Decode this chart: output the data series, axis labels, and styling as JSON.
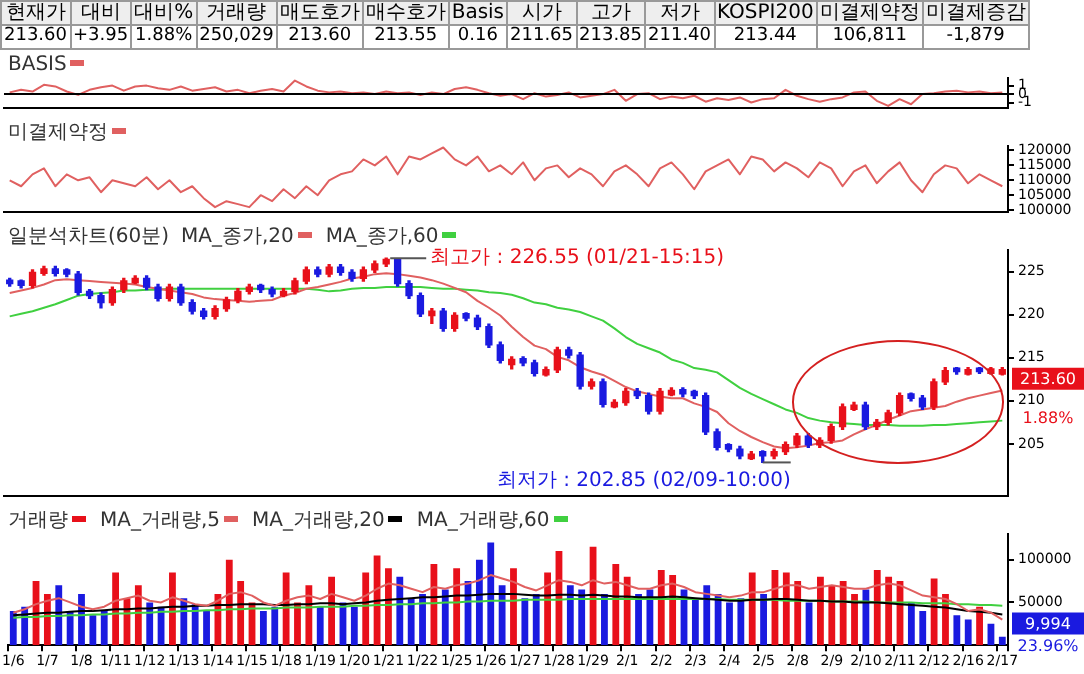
{
  "chart_data": [
    {
      "type": "other",
      "categories": [
        "현재가",
        "대비",
        "대비%",
        "거래량",
        "매도호가",
        "매수호가",
        "Basis",
        "시가",
        "고가",
        "저가",
        "KOSPI200",
        "미결제약정",
        "미결제증감"
      ],
      "value_labels": [
        "213.60",
        "+3.95",
        "1.88%",
        "250,029",
        "213.60",
        "213.55",
        "0.16",
        "211.65",
        "213.85",
        "211.40",
        "213.44",
        "106,811",
        "-1,879"
      ]
    },
    {
      "type": "line",
      "categories": [
        null,
        null,
        null,
        null,
        null,
        null,
        null,
        null,
        null,
        null,
        null,
        null,
        null,
        null,
        null,
        null,
        null,
        null,
        null,
        null,
        null,
        null,
        null,
        null,
        null,
        null,
        null,
        null,
        null,
        null,
        null,
        null,
        null,
        null,
        null,
        null,
        null,
        null,
        null,
        null,
        null,
        null,
        null,
        null,
        null,
        null,
        null,
        null,
        null,
        null,
        null,
        null,
        null,
        null,
        null,
        null,
        null,
        null,
        null,
        null,
        null,
        null,
        null,
        null,
        null,
        null,
        null,
        null,
        null,
        null,
        null,
        null,
        null,
        null,
        null,
        null,
        null,
        null,
        null,
        null,
        null,
        null,
        null,
        null,
        null,
        null,
        null,
        null
      ],
      "series": [
        {
          "name": "BASIS",
          "color": "#e06060",
          "values": [
            0.2,
            0.5,
            0.3,
            1.1,
            0.9,
            0.3,
            -0.1,
            0.5,
            0.8,
            1.0,
            0.4,
            0.9,
            1.0,
            0.7,
            0.5,
            0.9,
            0.4,
            0.6,
            0.8,
            0.3,
            0.5,
            0.1,
            0.4,
            0.6,
            0.3,
            1.6,
            0.9,
            0.4,
            0.2,
            0.3,
            0.1,
            0.2,
            0.0,
            0.3,
            0.1,
            0.2,
            -0.1,
            0.2,
            0.0,
            0.6,
            0.8,
            0.5,
            0.1,
            -0.2,
            0.0,
            -0.6,
            0.1,
            -0.3,
            -0.1,
            0.2,
            -0.4,
            -0.2,
            0.0,
            0.5,
            -0.8,
            0.0,
            0.1,
            -0.6,
            -0.3,
            -0.5,
            -0.2,
            -0.9,
            -0.5,
            -0.7,
            -0.4,
            -1.0,
            -0.6,
            -0.5,
            0.5,
            -0.2,
            -0.6,
            -0.9,
            -0.6,
            -0.4,
            0.2,
            0.3,
            -0.8,
            -1.4,
            -0.6,
            -1.2,
            0.0,
            0.1,
            0.3,
            0.4,
            0.2,
            0.3,
            0.1,
            0.2
          ]
        }
      ],
      "ylim": [
        -1.6,
        1.9
      ],
      "yticks": [
        -1,
        0,
        1
      ],
      "ref_lines": [
        {
          "axis": "y",
          "value": 0,
          "color": "#000000"
        }
      ],
      "tick_labels": "y",
      "legend": "top left"
    },
    {
      "type": "line",
      "categories": [
        null,
        null,
        null,
        null,
        null,
        null,
        null,
        null,
        null,
        null,
        null,
        null,
        null,
        null,
        null,
        null,
        null,
        null,
        null,
        null,
        null,
        null,
        null,
        null,
        null,
        null,
        null,
        null,
        null,
        null,
        null,
        null,
        null,
        null,
        null,
        null,
        null,
        null,
        null,
        null,
        null,
        null,
        null,
        null,
        null,
        null,
        null,
        null,
        null,
        null,
        null,
        null,
        null,
        null,
        null,
        null,
        null,
        null,
        null,
        null,
        null,
        null,
        null,
        null,
        null,
        null,
        null,
        null,
        null,
        null,
        null,
        null,
        null,
        null,
        null,
        null,
        null,
        null,
        null,
        null,
        null,
        null,
        null,
        null,
        null,
        null,
        null,
        null
      ],
      "series": [
        {
          "name": "미결제약정",
          "color": "#e06060",
          "values": [
            110000,
            108000,
            112000,
            114000,
            108000,
            112000,
            110000,
            111000,
            106000,
            110000,
            109000,
            108000,
            111000,
            107000,
            110000,
            106000,
            108000,
            104000,
            101000,
            103000,
            102000,
            101000,
            105000,
            103000,
            107000,
            104000,
            108000,
            105000,
            110000,
            112000,
            113000,
            117000,
            115000,
            118000,
            112000,
            118000,
            117000,
            119000,
            121000,
            117000,
            115000,
            118000,
            113000,
            115000,
            112000,
            116000,
            110000,
            114000,
            115000,
            111000,
            114000,
            112000,
            108000,
            113000,
            115000,
            112000,
            108000,
            114000,
            116000,
            112000,
            107000,
            113000,
            115000,
            117000,
            112000,
            118000,
            117000,
            113000,
            116000,
            114000,
            111000,
            116000,
            114000,
            108000,
            113000,
            115000,
            109000,
            113000,
            116000,
            110000,
            106000,
            112000,
            115000,
            114000,
            109000,
            112000,
            110000,
            108000
          ]
        }
      ],
      "ylim": [
        99500,
        121500
      ],
      "yticks": [
        100000,
        105000,
        110000,
        115000,
        120000
      ],
      "tick_labels": "y",
      "legend": "top left"
    },
    {
      "type": "candlestick",
      "title": "일분석차트(60분)",
      "categories": [
        null,
        null,
        null,
        null,
        null,
        null,
        null,
        null,
        null,
        null,
        null,
        null,
        null,
        null,
        null,
        null,
        null,
        null,
        null,
        null,
        null,
        null,
        null,
        null,
        null,
        null,
        null,
        null,
        null,
        null,
        null,
        null,
        null,
        null,
        null,
        null,
        null,
        null,
        null,
        null,
        null,
        null,
        null,
        null,
        null,
        null,
        null,
        null,
        null,
        null,
        null,
        null,
        null,
        null,
        null,
        null,
        null,
        null,
        null,
        null,
        null,
        null,
        null,
        null,
        null,
        null,
        null,
        null,
        null,
        null,
        null,
        null,
        null,
        null,
        null,
        null,
        null,
        null,
        null,
        null,
        null,
        null,
        null,
        null,
        null,
        null,
        null,
        null
      ],
      "ohlc": [
        [
          224.0,
          224.2,
          223.3,
          223.6
        ],
        [
          223.9,
          224.0,
          223.1,
          223.4
        ],
        [
          223.4,
          225.2,
          223.1,
          224.9
        ],
        [
          224.8,
          225.6,
          224.6,
          225.3
        ],
        [
          225.3,
          225.6,
          224.5,
          224.8
        ],
        [
          225.2,
          225.3,
          224.4,
          224.7
        ],
        [
          224.7,
          225.0,
          222.3,
          222.6
        ],
        [
          222.7,
          222.9,
          221.9,
          222.2
        ],
        [
          222.2,
          222.5,
          220.8,
          221.4
        ],
        [
          221.4,
          223.2,
          221.1,
          222.9
        ],
        [
          222.9,
          224.2,
          222.6,
          223.9
        ],
        [
          223.7,
          224.5,
          223.6,
          224.2
        ],
        [
          224.2,
          224.5,
          222.9,
          223.2
        ],
        [
          223.2,
          223.5,
          221.6,
          221.9
        ],
        [
          221.9,
          223.5,
          221.6,
          223.2
        ],
        [
          223.2,
          223.5,
          221.1,
          221.4
        ],
        [
          221.4,
          221.7,
          220.1,
          220.4
        ],
        [
          220.4,
          220.7,
          219.5,
          219.8
        ],
        [
          219.8,
          221.0,
          219.5,
          220.7
        ],
        [
          220.7,
          222.0,
          220.4,
          221.7
        ],
        [
          221.7,
          223.0,
          221.4,
          222.7
        ],
        [
          222.7,
          223.5,
          222.4,
          223.2
        ],
        [
          223.4,
          223.5,
          222.6,
          222.9
        ],
        [
          222.9,
          223.2,
          222.1,
          222.4
        ],
        [
          222.2,
          223.0,
          222.1,
          222.7
        ],
        [
          222.7,
          224.2,
          222.4,
          223.9
        ],
        [
          223.9,
          225.5,
          223.6,
          225.2
        ],
        [
          225.2,
          225.5,
          224.4,
          224.7
        ],
        [
          224.7,
          225.8,
          224.4,
          225.5
        ],
        [
          225.5,
          225.8,
          224.6,
          224.9
        ],
        [
          224.9,
          225.2,
          223.9,
          224.2
        ],
        [
          224.2,
          225.5,
          223.9,
          225.2
        ],
        [
          225.2,
          226.2,
          224.9,
          225.9
        ],
        [
          225.9,
          226.55,
          225.6,
          226.4
        ],
        [
          226.4,
          226.5,
          223.3,
          223.6
        ],
        [
          223.6,
          223.9,
          221.9,
          222.2
        ],
        [
          222.2,
          222.5,
          219.8,
          220.1
        ],
        [
          219.9,
          220.7,
          219.0,
          220.4
        ],
        [
          220.4,
          220.7,
          218.1,
          218.4
        ],
        [
          218.4,
          220.2,
          218.1,
          219.9
        ],
        [
          220.1,
          220.2,
          219.3,
          219.6
        ],
        [
          219.6,
          219.9,
          218.3,
          218.6
        ],
        [
          218.6,
          218.9,
          216.2,
          216.5
        ],
        [
          216.5,
          216.8,
          214.4,
          214.7
        ],
        [
          214.2,
          215.1,
          213.7,
          214.8
        ],
        [
          214.9,
          215.1,
          214.1,
          214.4
        ],
        [
          214.4,
          214.7,
          212.9,
          213.2
        ],
        [
          213.0,
          213.9,
          212.9,
          213.6
        ],
        [
          213.6,
          216.2,
          213.3,
          215.9
        ],
        [
          215.9,
          216.2,
          215.0,
          215.3
        ],
        [
          215.3,
          215.6,
          211.4,
          211.7
        ],
        [
          211.7,
          212.5,
          211.4,
          212.2
        ],
        [
          212.2,
          212.5,
          209.3,
          209.6
        ],
        [
          209.3,
          210.1,
          209.2,
          209.8
        ],
        [
          209.8,
          211.4,
          209.5,
          211.1
        ],
        [
          211.1,
          211.4,
          210.3,
          210.6
        ],
        [
          210.6,
          210.9,
          208.5,
          208.8
        ],
        [
          208.8,
          211.4,
          208.5,
          211.1
        ],
        [
          210.7,
          211.5,
          210.6,
          211.2
        ],
        [
          211.3,
          211.5,
          210.5,
          210.8
        ],
        [
          211.1,
          211.2,
          210.3,
          210.6
        ],
        [
          210.6,
          210.9,
          206.1,
          206.4
        ],
        [
          206.4,
          206.7,
          204.3,
          204.6
        ],
        [
          204.9,
          205.0,
          204.1,
          204.4
        ],
        [
          204.4,
          204.7,
          203.3,
          203.6
        ],
        [
          203.3,
          204.1,
          203.2,
          203.8
        ],
        [
          204.1,
          204.2,
          202.85,
          203.6
        ],
        [
          203.6,
          204.4,
          203.3,
          204.1
        ],
        [
          204.1,
          205.2,
          203.8,
          204.9
        ],
        [
          204.9,
          206.2,
          204.6,
          205.9
        ],
        [
          205.9,
          206.2,
          204.6,
          204.9
        ],
        [
          204.9,
          205.7,
          204.6,
          205.4
        ],
        [
          205.4,
          207.3,
          205.1,
          207.0
        ],
        [
          207.0,
          209.6,
          206.7,
          209.3
        ],
        [
          209.0,
          209.8,
          208.9,
          209.5
        ],
        [
          209.5,
          209.8,
          206.7,
          207.0
        ],
        [
          207.0,
          207.8,
          206.7,
          207.5
        ],
        [
          207.5,
          208.9,
          207.2,
          208.6
        ],
        [
          208.6,
          210.9,
          208.3,
          210.6
        ],
        [
          210.8,
          210.9,
          210.0,
          210.3
        ],
        [
          210.3,
          210.6,
          209.0,
          209.3
        ],
        [
          209.3,
          212.5,
          209.0,
          212.2
        ],
        [
          212.2,
          213.85,
          211.9,
          213.5
        ],
        [
          213.8,
          213.85,
          213.1,
          213.4
        ],
        [
          213.1,
          213.85,
          213.0,
          213.6
        ],
        [
          213.8,
          213.85,
          213.2,
          213.4
        ],
        [
          213.2,
          213.85,
          213.1,
          213.7
        ],
        [
          213.1,
          213.85,
          213.0,
          213.6
        ]
      ],
      "series": [
        {
          "name": "MA_종가,20",
          "type": "line",
          "color": "#e06060",
          "values": [
            222.5,
            222.8,
            223.1,
            223.5,
            224.0,
            224.1,
            224.0,
            223.9,
            223.8,
            223.7,
            223.6,
            223.5,
            223.2,
            223.0,
            222.8,
            222.6,
            222.4,
            222.0,
            221.8,
            221.7,
            221.6,
            221.5,
            221.6,
            221.7,
            222.2,
            222.5,
            223.0,
            223.2,
            223.5,
            223.8,
            224.2,
            224.4,
            224.7,
            224.8,
            224.7,
            224.5,
            224.3,
            224.0,
            223.6,
            223.1,
            222.6,
            221.6,
            220.8,
            219.9,
            218.6,
            217.4,
            216.4,
            216.0,
            215.1,
            214.7,
            213.9,
            213.4,
            213.0,
            212.3,
            211.6,
            211.1,
            210.8,
            210.5,
            210.3,
            210.3,
            209.7,
            209.3,
            208.7,
            207.4,
            206.5,
            205.8,
            205.2,
            204.7,
            204.5,
            204.6,
            204.8,
            205.1,
            205.2,
            205.4,
            206.1,
            206.7,
            207.2,
            207.8,
            208.3,
            208.8,
            209.0,
            209.2,
            209.4,
            209.9,
            210.3,
            210.6,
            210.9,
            211.2
          ]
        },
        {
          "name": "MA_종가,60",
          "type": "line",
          "color": "#40d040",
          "values": [
            219.8,
            220.1,
            220.4,
            220.8,
            221.2,
            221.7,
            222.2,
            222.4,
            222.5,
            222.6,
            222.8,
            222.8,
            222.9,
            222.9,
            223.0,
            223.0,
            223.0,
            223.0,
            223.0,
            223.0,
            223.0,
            223.0,
            223.0,
            223.0,
            223.0,
            223.0,
            223.0,
            222.9,
            222.7,
            222.8,
            223.0,
            223.1,
            223.1,
            223.2,
            223.2,
            223.2,
            223.2,
            223.1,
            223.0,
            223.0,
            222.9,
            222.8,
            222.6,
            222.5,
            222.3,
            221.9,
            221.4,
            221.2,
            220.8,
            220.6,
            220.3,
            219.8,
            219.3,
            218.4,
            217.4,
            216.6,
            216.1,
            215.6,
            214.8,
            214.4,
            213.8,
            213.6,
            213.3,
            212.4,
            211.5,
            210.8,
            210.2,
            209.6,
            209.0,
            208.6,
            208.0,
            207.7,
            207.5,
            207.4,
            207.3,
            207.2,
            207.2,
            207.2,
            207.1,
            207.1,
            207.1,
            207.2,
            207.2,
            207.3,
            207.4,
            207.5,
            207.6,
            207.7
          ]
        }
      ],
      "ylim": [
        199,
        227.5
      ],
      "yticks": [
        205,
        210,
        215,
        220,
        225
      ],
      "tick_labels": "y",
      "legend": "top left",
      "annotations": [
        "최고가 : 226.55 (01/21-15:15)",
        "최저가 : 202.85 (02/09-10:00)",
        "213.60",
        "1.88%"
      ]
    },
    {
      "type": "bar",
      "categories": [
        "1/6",
        null,
        null,
        "1/7",
        null,
        null,
        "1/8",
        null,
        null,
        "1/11",
        null,
        null,
        "1/12",
        null,
        null,
        "1/13",
        null,
        null,
        "1/14",
        null,
        null,
        "1/15",
        null,
        null,
        "1/18",
        null,
        null,
        "1/19",
        null,
        null,
        "1/20",
        null,
        null,
        "1/21",
        null,
        null,
        "1/22",
        null,
        null,
        "1/25",
        null,
        null,
        "1/26",
        null,
        null,
        "1/27",
        null,
        null,
        "1/28",
        null,
        null,
        "1/29",
        null,
        null,
        "2/1",
        null,
        null,
        "2/2",
        null,
        null,
        "2/3",
        null,
        null,
        "2/4",
        null,
        null,
        "2/5",
        null,
        null,
        "2/8",
        null,
        null,
        "2/9",
        null,
        null,
        "2/10",
        null,
        null,
        "2/11",
        null,
        null,
        "2/12",
        null,
        null,
        "2/16",
        null,
        null,
        "2/17"
      ],
      "series": [
        {
          "name": "거래량",
          "color": "#e8101a",
          "colors": [
            "#1a1ae0",
            "#1a1ae0",
            "#e8101a",
            "#e8101a",
            "#1a1ae0",
            "#1a1ae0",
            "#1a1ae0",
            "#1a1ae0",
            "#1a1ae0",
            "#e8101a",
            "#e8101a",
            "#e8101a",
            "#1a1ae0",
            "#1a1ae0",
            "#e8101a",
            "#1a1ae0",
            "#1a1ae0",
            "#1a1ae0",
            "#e8101a",
            "#e8101a",
            "#e8101a",
            "#e8101a",
            "#1a1ae0",
            "#1a1ae0",
            "#e8101a",
            "#e8101a",
            "#e8101a",
            "#1a1ae0",
            "#e8101a",
            "#1a1ae0",
            "#1a1ae0",
            "#e8101a",
            "#e8101a",
            "#e8101a",
            "#1a1ae0",
            "#1a1ae0",
            "#1a1ae0",
            "#e8101a",
            "#1a1ae0",
            "#e8101a",
            "#1a1ae0",
            "#1a1ae0",
            "#1a1ae0",
            "#1a1ae0",
            "#e8101a",
            "#1a1ae0",
            "#1a1ae0",
            "#e8101a",
            "#e8101a",
            "#1a1ae0",
            "#1a1ae0",
            "#e8101a",
            "#1a1ae0",
            "#e8101a",
            "#e8101a",
            "#1a1ae0",
            "#1a1ae0",
            "#e8101a",
            "#e8101a",
            "#1a1ae0",
            "#1a1ae0",
            "#1a1ae0",
            "#1a1ae0",
            "#1a1ae0",
            "#1a1ae0",
            "#e8101a",
            "#1a1ae0",
            "#e8101a",
            "#e8101a",
            "#e8101a",
            "#1a1ae0",
            "#e8101a",
            "#e8101a",
            "#e8101a",
            "#e8101a",
            "#1a1ae0",
            "#e8101a",
            "#e8101a",
            "#e8101a",
            "#1a1ae0",
            "#1a1ae0",
            "#e8101a",
            "#e8101a",
            "#1a1ae0",
            "#1a1ae0",
            "#e8101a",
            "#1a1ae0",
            "#1a1ae0"
          ],
          "values": [
            40000,
            45000,
            75000,
            60000,
            70000,
            40000,
            60000,
            35000,
            40000,
            85000,
            55000,
            70000,
            50000,
            45000,
            85000,
            55000,
            48000,
            40000,
            60000,
            100000,
            75000,
            50000,
            40000,
            45000,
            85000,
            50000,
            70000,
            45000,
            80000,
            50000,
            45000,
            85000,
            105000,
            90000,
            80000,
            55000,
            60000,
            95000,
            65000,
            90000,
            75000,
            100000,
            120000,
            70000,
            90000,
            55000,
            60000,
            85000,
            110000,
            70000,
            65000,
            115000,
            60000,
            95000,
            80000,
            60000,
            65000,
            88000,
            82000,
            65000,
            55000,
            70000,
            60000,
            50000,
            55000,
            85000,
            60000,
            88000,
            85000,
            75000,
            50000,
            80000,
            70000,
            75000,
            60000,
            65000,
            88000,
            80000,
            75000,
            50000,
            40000,
            78000,
            60000,
            35000,
            30000,
            45000,
            25000,
            9994
          ]
        },
        {
          "name": "MA_거래량,5",
          "type": "line",
          "color": "#e06060",
          "values": [
            38000,
            42000,
            48000,
            52000,
            55000,
            50000,
            45000,
            42000,
            45000,
            52000,
            55000,
            58000,
            52000,
            50000,
            56000,
            52000,
            48000,
            46000,
            52000,
            60000,
            62000,
            58000,
            50000,
            46000,
            52000,
            56000,
            58000,
            54000,
            60000,
            56000,
            52000,
            58000,
            66000,
            72000,
            70000,
            66000,
            62000,
            68000,
            66000,
            70000,
            72000,
            76000,
            82000,
            78000,
            74000,
            68000,
            64000,
            70000,
            76000,
            74000,
            70000,
            76000,
            72000,
            74000,
            70000,
            66000,
            66000,
            70000,
            72000,
            68000,
            62000,
            60000,
            58000,
            56000,
            58000,
            62000,
            62000,
            66000,
            70000,
            70000,
            66000,
            68000,
            70000,
            68000,
            66000,
            66000,
            70000,
            72000,
            70000,
            64000,
            58000,
            56000,
            54000,
            48000,
            40000,
            42000,
            38000,
            30000
          ]
        },
        {
          "name": "MA_거래량,20",
          "type": "line",
          "color": "#000000",
          "values": [
            35000,
            36000,
            37000,
            38000,
            38000,
            39000,
            40000,
            40000,
            41000,
            42000,
            42000,
            43000,
            43000,
            44000,
            45000,
            45000,
            46000,
            46000,
            47000,
            47000,
            48000,
            48000,
            48000,
            47000,
            47000,
            48000,
            48000,
            49000,
            49000,
            48000,
            49000,
            50000,
            52000,
            53000,
            54000,
            55000,
            56000,
            56000,
            57000,
            58000,
            58000,
            59000,
            60000,
            60000,
            60000,
            59000,
            58000,
            58000,
            59000,
            59000,
            58000,
            59000,
            58000,
            57000,
            57000,
            56000,
            56000,
            56000,
            57000,
            56000,
            55000,
            54000,
            53000,
            52000,
            52000,
            53000,
            53000,
            54000,
            54000,
            53000,
            52000,
            52000,
            51000,
            51000,
            50000,
            50000,
            50000,
            49000,
            48000,
            47000,
            46000,
            45000,
            44000,
            42000,
            40000,
            39000,
            38000,
            36000
          ]
        },
        {
          "name": "MA_거래량,60",
          "type": "line",
          "color": "#40d040",
          "values": [
            32000,
            33000,
            33000,
            34000,
            34000,
            35000,
            35000,
            36000,
            36000,
            37000,
            37000,
            38000,
            38000,
            39000,
            39000,
            40000,
            40000,
            41000,
            41000,
            42000,
            42000,
            43000,
            43000,
            43000,
            44000,
            44000,
            44000,
            45000,
            45000,
            45000,
            46000,
            46000,
            47000,
            47000,
            48000,
            48000,
            49000,
            49000,
            50000,
            50000,
            51000,
            51000,
            52000,
            52000,
            52000,
            53000,
            53000,
            53000,
            53000,
            54000,
            54000,
            54000,
            54000,
            54000,
            54000,
            54000,
            54000,
            54000,
            54000,
            54000,
            54000,
            54000,
            54000,
            53000,
            53000,
            53000,
            53000,
            53000,
            52000,
            52000,
            52000,
            52000,
            51000,
            51000,
            51000,
            51000,
            50000,
            50000,
            50000,
            50000,
            49000,
            49000,
            49000,
            48000,
            48000,
            47000,
            47000,
            46000
          ]
        }
      ],
      "ylim": [
        0,
        130000
      ],
      "yticks": [
        50000,
        100000
      ],
      "legend": "top left",
      "annotations": [
        "9,994",
        "23.96%"
      ]
    }
  ]
}
